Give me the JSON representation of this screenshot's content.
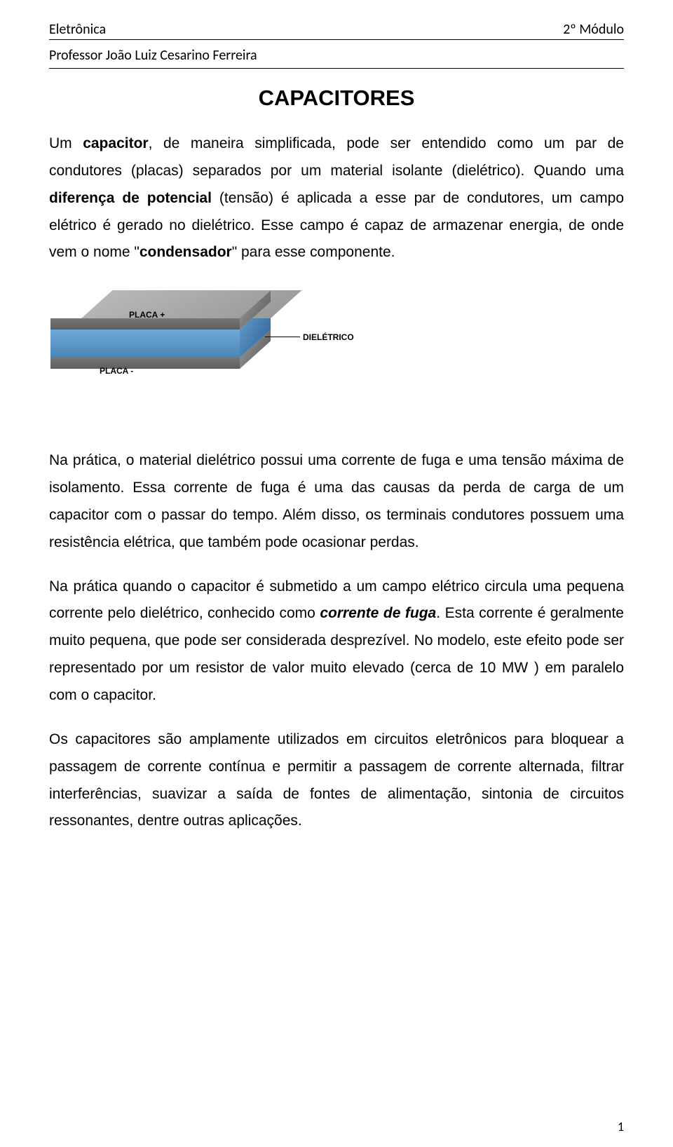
{
  "header": {
    "left": "Eletrônica",
    "right": "2º Módulo",
    "sub": "Professor João Luiz Cesarino Ferreira"
  },
  "title": "CAPACITORES",
  "p1_a": "Um ",
  "p1_b": "capacitor",
  "p1_c": ", de maneira simplificada, pode ser entendido como um par de condutores (placas) separados por um material isolante (dielétrico). Quando uma ",
  "p1_d": "diferença de potencial",
  "p1_e": " (tensão) é aplicada a esse par de condutores, um campo elétrico é gerado no dielétrico. Esse campo é capaz de armazenar energia, de onde vem o nome \"",
  "p1_f": "condensador",
  "p1_g": "\" para esse componente.",
  "diagram": {
    "placa_plus": "PLACA +",
    "placa_minus": "PLACA -",
    "dieletrico": "DIELÉTRICO",
    "colors": {
      "plate_top_face": "#9a9a9a",
      "plate_front": "#666666",
      "dielectric": "#5a93c4",
      "label_text": "#000000"
    }
  },
  "p2": "Na prática, o material dielétrico possui uma corrente de fuga e uma tensão máxima de isolamento. Essa corrente de fuga é uma das causas da perda de carga de um capacitor com o passar do tempo. Além disso, os terminais condutores possuem uma resistência elétrica, que também pode ocasionar perdas.",
  "p3_a": "Na prática quando o capacitor é submetido a um campo elétrico circula uma pequena corrente pelo dielétrico, conhecido como ",
  "p3_b": "corrente de fuga",
  "p3_c": ". Esta corrente é geralmente muito pequena, que pode ser considerada desprezível. No modelo, este efeito pode ser representado por um resistor de valor muito elevado (cerca de 10 MW ) em paralelo com o capacitor.",
  "p4": "Os capacitores são amplamente utilizados em circuitos eletrônicos para bloquear a passagem de corrente contínua e permitir a passagem de corrente alternada, filtrar interferências, suavizar a saída de fontes de alimentação, sintonia de circuitos ressonantes, dentre outras aplicações.",
  "page_number": "1"
}
